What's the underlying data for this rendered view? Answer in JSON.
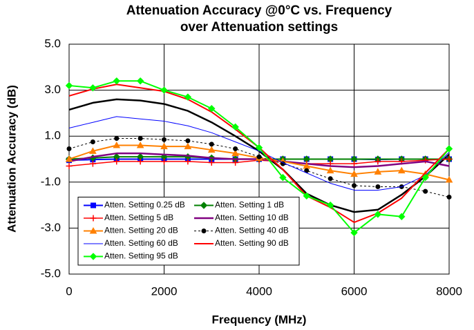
{
  "chart_data": {
    "type": "line",
    "title": [
      "Attenuation Accuracy @0°C vs. Frequency",
      "over Attenuation settings"
    ],
    "x_label": "Frequency (MHz)",
    "y_label": "Attenuation Accuracy (dB)",
    "x": [
      0,
      500,
      1000,
      1500,
      2000,
      2500,
      3000,
      3500,
      4000,
      4500,
      5000,
      5500,
      6000,
      6500,
      7000,
      7500,
      8000
    ],
    "xlim": [
      0,
      8000
    ],
    "xticks": [
      0,
      2000,
      4000,
      6000,
      8000
    ],
    "ylim": [
      -5,
      5
    ],
    "yticks": [
      {
        "value": -5,
        "label": "-5.0"
      },
      {
        "value": -3,
        "label": "-3.0"
      },
      {
        "value": -1,
        "label": "-1.0"
      },
      {
        "value": 1,
        "label": "1.0"
      },
      {
        "value": 3,
        "label": "3.0"
      },
      {
        "value": 5,
        "label": "5.0"
      }
    ],
    "grid": true,
    "legend": "lower left",
    "series": [
      {
        "color": "#000000",
        "width": 2.5,
        "marker": "none",
        "values": [
          2.15,
          2.45,
          2.6,
          2.55,
          2.4,
          2.1,
          1.6,
          1.0,
          0.35,
          -0.45,
          -1.5,
          -2.0,
          -2.3,
          -2.2,
          -1.55,
          -0.75,
          0.2
        ]
      },
      {
        "name": "Atten. Setting 0.25 dB",
        "color": "#0000ff",
        "width": 2,
        "marker": "square",
        "values": [
          -0.05,
          -0.02,
          0,
          0,
          0,
          0,
          0,
          0,
          0,
          0,
          0,
          0,
          0,
          -0.02,
          0,
          0,
          0
        ]
      },
      {
        "name": "Atten. Setting 1 dB",
        "color": "#008000",
        "width": 2,
        "marker": "diamond",
        "values": [
          0,
          0.05,
          0.1,
          0.1,
          0.1,
          0.1,
          0.05,
          0,
          0,
          0,
          0,
          0,
          0,
          0,
          0,
          0,
          0
        ]
      },
      {
        "name": "Atten. Setting 5 dB",
        "color": "#ff0000",
        "width": 1.5,
        "marker": "plus",
        "values": [
          -0.3,
          -0.2,
          -0.1,
          -0.1,
          -0.1,
          -0.1,
          -0.15,
          -0.15,
          -0.05,
          -0.1,
          -0.2,
          -0.2,
          -0.2,
          -0.1,
          -0.1,
          -0.05,
          0
        ]
      },
      {
        "name": "Atten. Setting 10 dB",
        "color": "#800080",
        "width": 2.5,
        "marker": "none",
        "values": [
          -0.1,
          0.1,
          0.25,
          0.25,
          0.2,
          0.15,
          0.05,
          0,
          0,
          -0.1,
          -0.2,
          -0.3,
          -0.35,
          -0.3,
          -0.2,
          -0.1,
          -0.3
        ]
      },
      {
        "name": "Atten. Setting 20 dB",
        "color": "#ff8000",
        "width": 2,
        "marker": "triangle",
        "values": [
          0,
          0.35,
          0.6,
          0.6,
          0.55,
          0.55,
          0.4,
          0.25,
          0.05,
          -0.1,
          -0.3,
          -0.5,
          -0.65,
          -0.55,
          -0.5,
          -0.65,
          -0.9
        ]
      },
      {
        "name": "Atten. Setting 40 dB",
        "color": "#000000",
        "width": 1,
        "marker": "circle",
        "dash": true,
        "values": [
          0.45,
          0.75,
          0.9,
          0.9,
          0.85,
          0.8,
          0.65,
          0.45,
          0.1,
          -0.2,
          -0.5,
          -0.85,
          -1.15,
          -1.2,
          -1.2,
          -1.4,
          -1.65
        ]
      },
      {
        "name": "Atten. Setting 60 dB",
        "color": "#0000ff",
        "width": 1,
        "marker": "none",
        "values": [
          1.35,
          1.6,
          1.85,
          1.75,
          1.65,
          1.45,
          1.15,
          0.75,
          0.35,
          -0.15,
          -0.6,
          -1.05,
          -1.35,
          -1.35,
          -1.2,
          -0.7,
          0.3
        ]
      },
      {
        "name": "Atten. Setting 90 dB",
        "color": "#ff0000",
        "width": 2,
        "marker": "none",
        "values": [
          2.75,
          3.05,
          3.25,
          3.1,
          2.95,
          2.6,
          2.05,
          1.3,
          0.5,
          -0.45,
          -1.6,
          -2.1,
          -2.75,
          -2.35,
          -1.7,
          -0.6,
          0.45
        ]
      },
      {
        "name": "Atten. Setting 95 dB",
        "color": "#00ff00",
        "width": 2,
        "marker": "diamond",
        "values": [
          3.2,
          3.1,
          3.4,
          3.4,
          3.0,
          2.7,
          2.2,
          1.4,
          0.5,
          -0.8,
          -1.6,
          -2.0,
          -3.2,
          -2.4,
          -2.5,
          -0.8,
          0.45
        ]
      }
    ]
  }
}
